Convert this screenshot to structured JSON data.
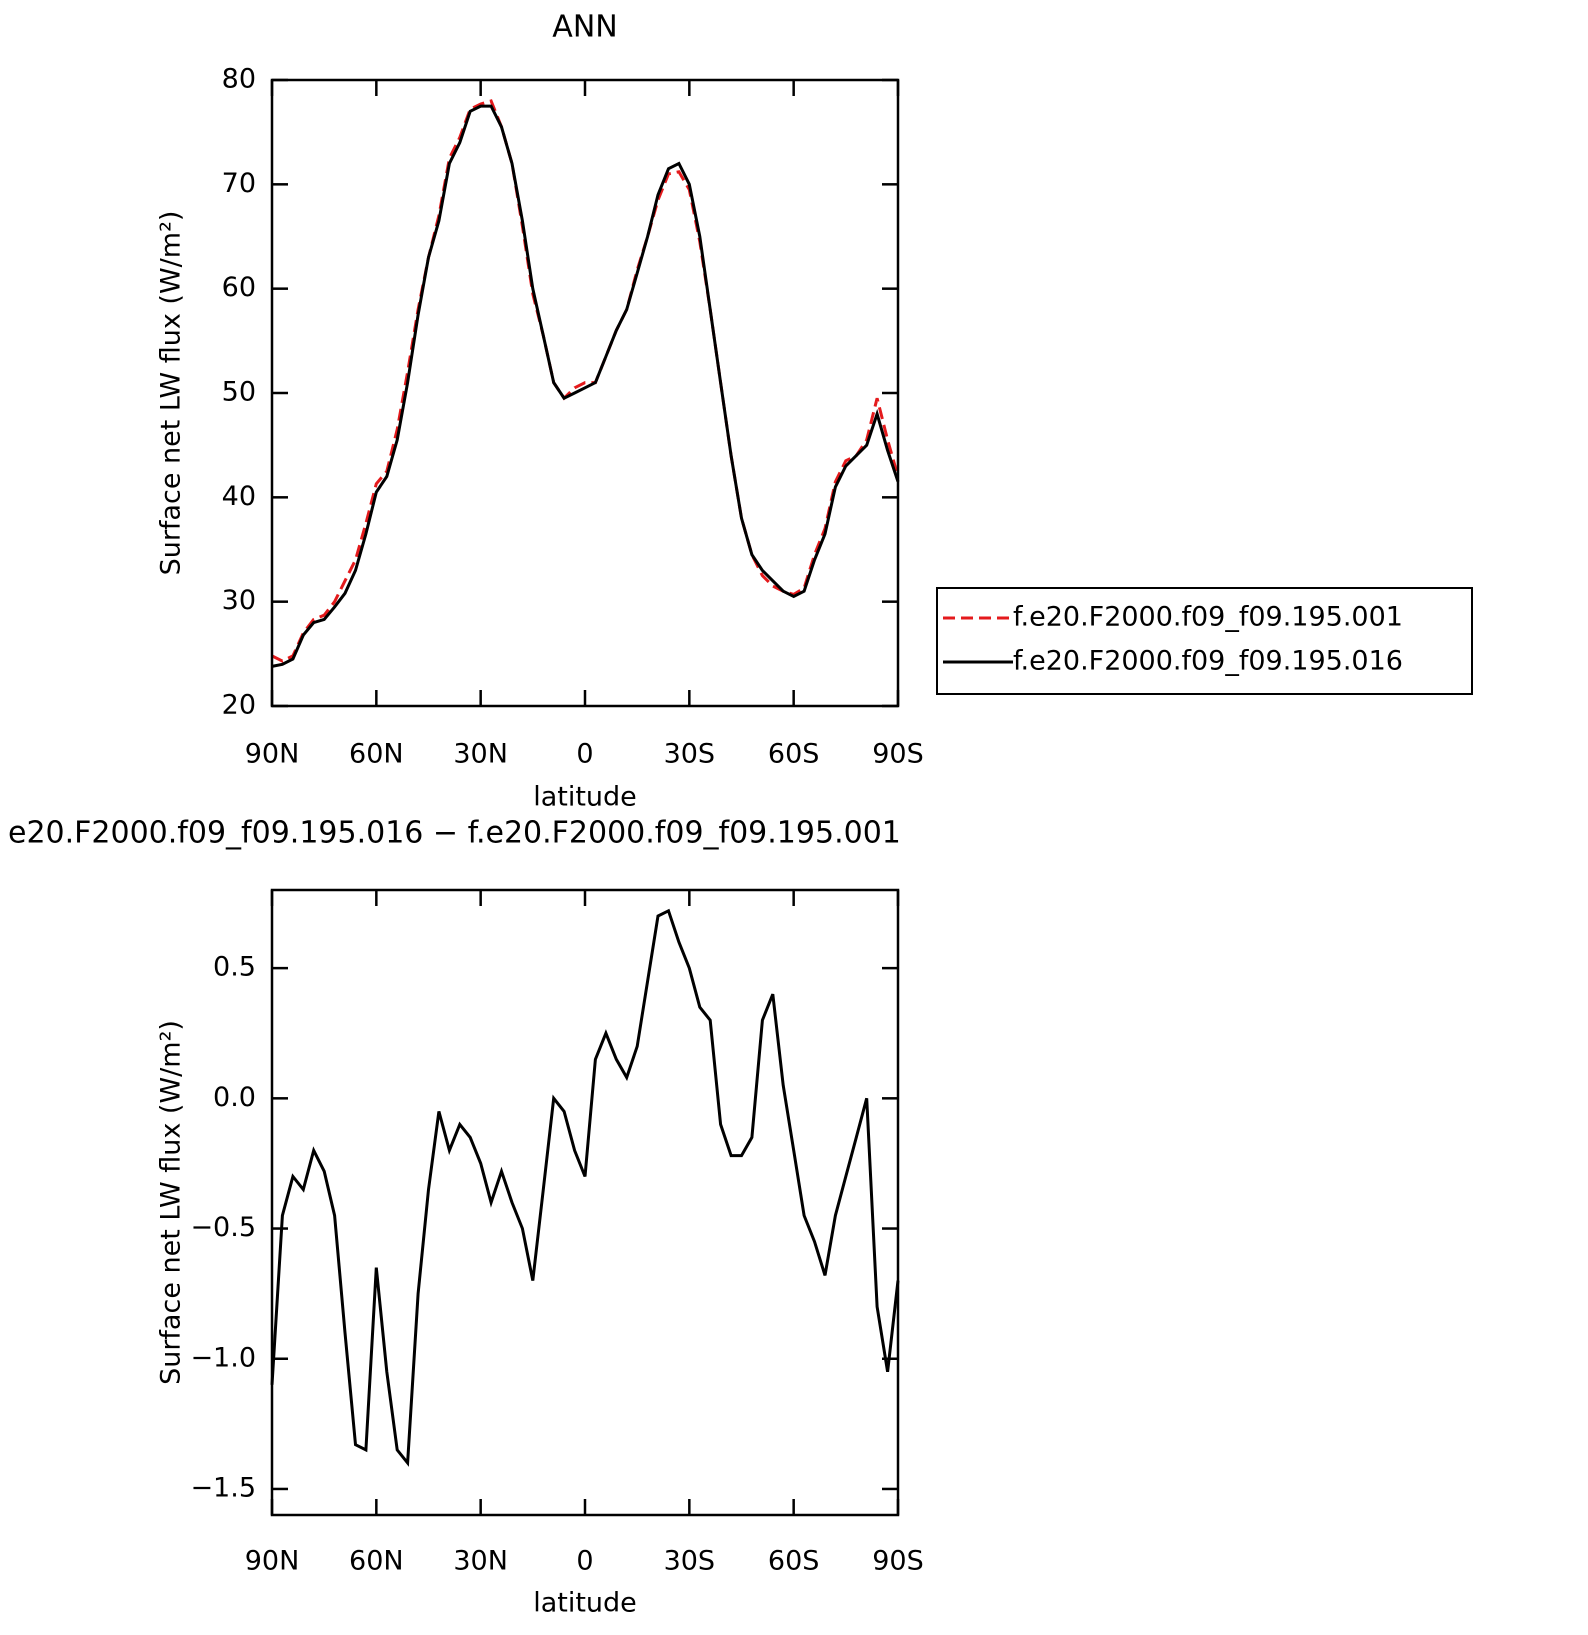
{
  "chart_data": [
    {
      "type": "line",
      "title": "ANN",
      "x_label": "latitude",
      "y_label": "Surface net LW flux (W/m²)",
      "x": [
        90,
        87,
        84,
        81,
        78,
        75,
        72,
        69,
        66,
        63,
        60,
        57,
        54,
        51,
        48,
        45,
        42,
        39,
        36,
        33,
        30,
        27,
        24,
        21,
        18,
        15,
        12,
        9,
        6,
        3,
        0,
        -3,
        -6,
        -9,
        -12,
        -15,
        -18,
        -21,
        -24,
        -27,
        -30,
        -33,
        -36,
        -39,
        -42,
        -45,
        -48,
        -51,
        -54,
        -57,
        -60,
        -63,
        -66,
        -69,
        -72,
        -75,
        -78,
        -81,
        -84,
        -87,
        -90
      ],
      "series": [
        {
          "name": "f.e20.F2000.f09_f09.195.001",
          "color": "#e41a1c",
          "line_style": "dashed",
          "values": [
            24.8,
            24.3,
            24.8,
            27,
            28.3,
            28.7,
            30,
            32,
            34,
            37.5,
            41.3,
            42.5,
            46.5,
            52,
            58,
            63,
            67,
            72.5,
            74.5,
            77.2,
            77.7,
            78,
            75.5,
            72,
            66,
            59.5,
            55.5,
            51,
            49.5,
            50.5,
            51,
            51,
            53.5,
            56,
            58,
            61.8,
            65,
            68.5,
            71,
            71.2,
            69.5,
            64.5,
            58,
            51,
            44,
            38,
            34.5,
            32.5,
            31.5,
            31,
            30.7,
            31.3,
            34.5,
            37,
            41.5,
            43.5,
            44,
            45.5,
            49.5,
            45.5,
            42
          ]
        },
        {
          "name": "f.e20.F2000.f09_f09.195.016",
          "color": "#000000",
          "line_style": "solid",
          "values": [
            23.8,
            24,
            24.5,
            26.8,
            28,
            28.3,
            29.5,
            30.8,
            33,
            36.5,
            40.5,
            42,
            45.5,
            51,
            57.5,
            63,
            66.5,
            72,
            74,
            77,
            77.5,
            77.5,
            75.5,
            72,
            66.5,
            60,
            55.5,
            51,
            49.5,
            50,
            50.5,
            51,
            53.5,
            56,
            58,
            61.5,
            65,
            69,
            71.5,
            72,
            70,
            65,
            58,
            51,
            44,
            38,
            34.5,
            33,
            32,
            31,
            30.5,
            31,
            34,
            36.5,
            41,
            43,
            44,
            45,
            48,
            44.5,
            41.5
          ]
        }
      ],
      "xlim": [
        90,
        -90
      ],
      "xticks": [
        {
          "value": 90,
          "label": "90N"
        },
        {
          "value": 60,
          "label": "60N"
        },
        {
          "value": 30,
          "label": "30N"
        },
        0,
        {
          "value": -30,
          "label": "30S"
        },
        {
          "value": -60,
          "label": "60S"
        },
        {
          "value": -90,
          "label": "90S"
        }
      ],
      "ylim": [
        20,
        80
      ],
      "yticks": [
        20,
        30,
        40,
        50,
        60,
        70,
        80
      ],
      "legend": "outside-right"
    },
    {
      "type": "line",
      "title": "e20.F2000.f09_f09.195.016 − f.e20.F2000.f09_f09.195.001",
      "x_label": "latitude",
      "y_label": "Surface net LW flux (W/m²)",
      "x": [
        90,
        87,
        84,
        81,
        78,
        75,
        72,
        69,
        66,
        63,
        60,
        57,
        54,
        51,
        48,
        45,
        42,
        39,
        36,
        33,
        30,
        27,
        24,
        21,
        18,
        15,
        12,
        9,
        6,
        3,
        0,
        -3,
        -6,
        -9,
        -12,
        -15,
        -18,
        -21,
        -24,
        -27,
        -30,
        -33,
        -36,
        -39,
        -42,
        -45,
        -48,
        -51,
        -54,
        -57,
        -60,
        -63,
        -66,
        -69,
        -72,
        -75,
        -78,
        -81,
        -84,
        -87,
        -90
      ],
      "series": [
        {
          "color": "#000000",
          "line_style": "solid",
          "values": [
            -1.1,
            -0.45,
            -0.3,
            -0.35,
            -0.2,
            -0.28,
            -0.45,
            -0.9,
            -1.33,
            -1.35,
            -0.65,
            -1.05,
            -1.35,
            -1.4,
            -0.75,
            -0.35,
            -0.05,
            -0.2,
            -0.1,
            -0.15,
            -0.25,
            -0.4,
            -0.28,
            -0.4,
            -0.5,
            -0.7,
            -0.35,
            0,
            -0.05,
            -0.2,
            -0.3,
            0.15,
            0.25,
            0.15,
            0.08,
            0.2,
            0.45,
            0.7,
            0.72,
            0.6,
            0.5,
            0.35,
            0.3,
            -0.1,
            -0.22,
            -0.22,
            -0.15,
            0.3,
            0.4,
            0.05,
            -0.2,
            -0.45,
            -0.55,
            -0.68,
            -0.45,
            -0.3,
            -0.15,
            0,
            -0.8,
            -1.05,
            -0.7
          ]
        }
      ],
      "xlim": [
        90,
        -90
      ],
      "xticks": [
        {
          "value": 90,
          "label": "90N"
        },
        {
          "value": 60,
          "label": "60N"
        },
        {
          "value": 30,
          "label": "30N"
        },
        0,
        {
          "value": -30,
          "label": "30S"
        },
        {
          "value": -60,
          "label": "60S"
        },
        {
          "value": -90,
          "label": "90S"
        }
      ],
      "ylim": [
        -1.6,
        0.8
      ],
      "yticks": [
        {
          "value": -1.5,
          "label": "−1.5"
        },
        {
          "value": -1,
          "label": "−1.0"
        },
        {
          "value": -0.5,
          "label": "−0.5"
        },
        {
          "value": 0,
          "label": "0.0"
        },
        0.5
      ]
    }
  ]
}
